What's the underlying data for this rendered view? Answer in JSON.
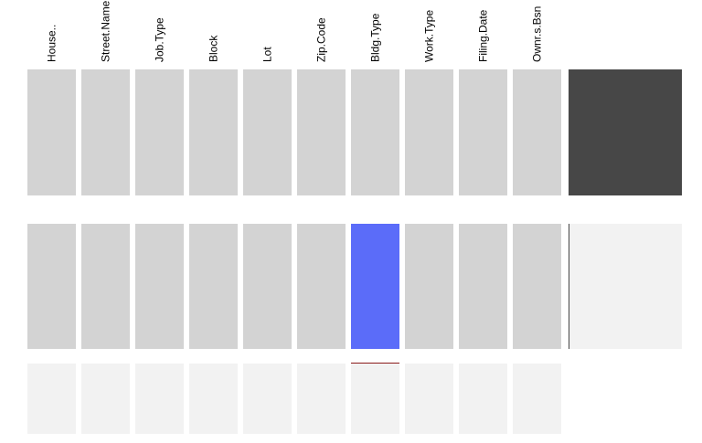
{
  "chart_data": {
    "type": "heatmap",
    "columns": [
      "House..",
      "Street.Name",
      "Job.Type",
      "Block",
      "Lot",
      "Zip.Code",
      "Bldg.Type",
      "Work.Type",
      "Filing.Date",
      "Ownr.s.Bsn"
    ],
    "rows": [
      {
        "cells": [
          "observed",
          "observed",
          "observed",
          "observed",
          "observed",
          "observed",
          "observed",
          "observed",
          "observed",
          "observed"
        ],
        "bar_fraction": 1.0
      },
      {
        "cells": [
          "observed",
          "observed",
          "observed",
          "observed",
          "observed",
          "observed",
          "missing",
          "observed",
          "observed",
          "observed"
        ],
        "bar_fraction": 0.0
      },
      {
        "cells": [
          "empty",
          "empty",
          "empty",
          "empty",
          "empty",
          "empty",
          "empty",
          "empty",
          "empty",
          "empty"
        ],
        "bar_fraction": null
      }
    ],
    "colors": {
      "observed": "#d3d3d3",
      "missing": "#5b6cf9",
      "empty": "#f2f2f2",
      "bar_fill": "#474747",
      "bar_track": "#f2f2f2",
      "marker": "#8b1a1a"
    }
  }
}
